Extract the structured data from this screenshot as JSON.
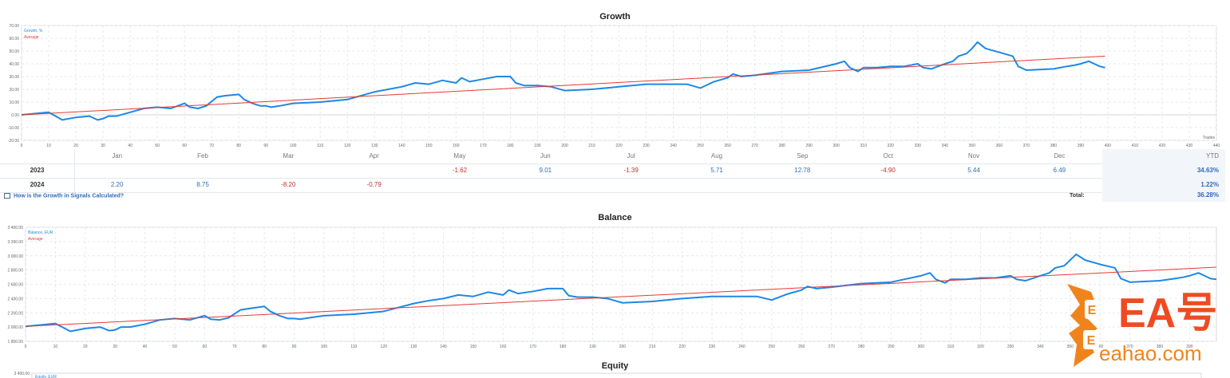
{
  "chart_data": [
    {
      "type": "line",
      "title": "Growth",
      "xlabel": "Trades",
      "xlim": [
        0,
        440
      ],
      "ylim": [
        -20,
        70
      ],
      "x_ticks": [
        "0",
        "10",
        "20",
        "30",
        "40",
        "50",
        "60",
        "70",
        "80",
        "90",
        "100",
        "110",
        "120",
        "130",
        "140",
        "150",
        "160",
        "170",
        "180",
        "190",
        "200",
        "210",
        "220",
        "230",
        "240",
        "250",
        "260",
        "270",
        "280",
        "290",
        "300",
        "310",
        "320",
        "330",
        "340",
        "350",
        "360",
        "370",
        "380",
        "390",
        "400",
        "410",
        "420",
        "430",
        "440"
      ],
      "y_ticks": [
        "-20.00",
        "-10.00",
        "0.00",
        "10.00",
        "20.00",
        "30.00",
        "40.00",
        "50.00",
        "60.00",
        "70.00"
      ],
      "legend": [
        "Growth, %",
        "Average"
      ],
      "series": [
        {
          "name": "Growth, %",
          "color": "#1e88e5",
          "x": [
            0,
            5,
            10,
            15,
            20,
            25,
            28,
            30,
            32,
            35,
            40,
            45,
            50,
            55,
            60,
            62,
            65,
            68,
            72,
            75,
            80,
            82,
            85,
            88,
            90,
            92,
            95,
            100,
            110,
            120,
            130,
            135,
            140,
            145,
            150,
            155,
            160,
            162,
            165,
            170,
            175,
            180,
            182,
            185,
            190,
            195,
            200,
            210,
            220,
            230,
            240,
            245,
            250,
            255,
            260,
            262,
            265,
            270,
            280,
            290,
            300,
            303,
            305,
            308,
            310,
            315,
            320,
            325,
            330,
            332,
            335,
            340,
            343,
            345,
            348,
            350,
            352,
            355,
            360,
            365,
            367,
            370,
            380,
            385,
            388,
            390,
            393,
            395,
            397,
            399
          ],
          "y": [
            0,
            1,
            2,
            -4,
            -2,
            -1,
            -4,
            -3,
            -1,
            -1,
            2,
            5,
            6,
            5,
            9,
            6,
            5,
            7,
            14,
            15,
            16,
            12,
            9,
            7,
            7,
            6,
            7,
            9,
            10,
            12,
            18,
            20,
            22,
            25,
            24,
            27,
            25,
            29,
            26,
            28,
            30,
            30,
            25,
            23,
            23,
            22,
            19,
            20,
            22,
            24,
            24,
            24,
            21,
            26,
            29,
            32,
            30,
            31,
            34,
            35,
            40,
            42,
            37,
            34,
            37,
            37,
            38,
            38,
            40,
            37,
            36,
            40,
            42,
            46,
            48,
            52,
            57,
            52,
            49,
            46,
            38,
            35,
            36,
            38,
            39,
            40,
            42,
            40,
            38,
            37
          ]
        },
        {
          "name": "Average",
          "color": "#e53935",
          "x": [
            0,
            399
          ],
          "y": [
            0,
            46
          ]
        }
      ]
    },
    {
      "type": "line",
      "title": "Balance",
      "xlim": [
        0,
        399
      ],
      "ylim": [
        1800,
        3400
      ],
      "x_ticks": [
        "0",
        "10",
        "20",
        "30",
        "40",
        "50",
        "60",
        "70",
        "80",
        "90",
        "100",
        "110",
        "120",
        "130",
        "140",
        "150",
        "160",
        "170",
        "180",
        "190",
        "200",
        "210",
        "220",
        "230",
        "240",
        "250",
        "260",
        "270",
        "280",
        "290",
        "300",
        "310",
        "320",
        "330",
        "340",
        "350",
        "360",
        "370",
        "380",
        "390"
      ],
      "y_ticks": [
        "1 800.00",
        "2 000.00",
        "2 200.00",
        "2 400.00",
        "2 600.00",
        "2 800.00",
        "3 000.00",
        "3 200.00",
        "3 400.00"
      ],
      "legend": [
        "Balance, EUR",
        "Average"
      ],
      "series": [
        {
          "name": "Balance, EUR",
          "color": "#1e88e5",
          "x": [
            0,
            5,
            10,
            15,
            20,
            25,
            28,
            30,
            32,
            35,
            40,
            45,
            50,
            55,
            60,
            62,
            65,
            68,
            72,
            75,
            80,
            82,
            85,
            88,
            90,
            92,
            95,
            100,
            110,
            120,
            130,
            135,
            140,
            145,
            150,
            155,
            160,
            162,
            165,
            170,
            175,
            180,
            182,
            185,
            190,
            195,
            200,
            210,
            220,
            230,
            240,
            245,
            250,
            255,
            260,
            262,
            265,
            270,
            280,
            290,
            300,
            303,
            305,
            308,
            310,
            315,
            320,
            325,
            330,
            332,
            335,
            340,
            343,
            345,
            348,
            350,
            352,
            355,
            360,
            365,
            367,
            370,
            380,
            385,
            388,
            390,
            393,
            395,
            397,
            399
          ],
          "y": [
            2010,
            2030,
            2050,
            1940,
            1980,
            2000,
            1950,
            1960,
            2000,
            2000,
            2040,
            2100,
            2120,
            2100,
            2160,
            2110,
            2100,
            2130,
            2240,
            2260,
            2290,
            2220,
            2160,
            2120,
            2120,
            2110,
            2130,
            2160,
            2180,
            2220,
            2330,
            2370,
            2400,
            2450,
            2430,
            2490,
            2450,
            2520,
            2470,
            2500,
            2540,
            2540,
            2440,
            2420,
            2420,
            2400,
            2340,
            2360,
            2400,
            2430,
            2430,
            2430,
            2380,
            2460,
            2520,
            2570,
            2540,
            2560,
            2610,
            2630,
            2720,
            2760,
            2670,
            2620,
            2670,
            2670,
            2690,
            2690,
            2720,
            2670,
            2650,
            2720,
            2760,
            2830,
            2860,
            2940,
            3020,
            2940,
            2880,
            2830,
            2680,
            2630,
            2650,
            2680,
            2700,
            2720,
            2760,
            2720,
            2680,
            2670
          ]
        },
        {
          "name": "Average",
          "color": "#e53935",
          "x": [
            0,
            399
          ],
          "y": [
            2010,
            2840
          ]
        }
      ]
    },
    {
      "type": "line",
      "title": "Equity",
      "y_ticks": [
        "3 400.00"
      ],
      "legend": [
        "Equity, EUR"
      ],
      "series": []
    }
  ],
  "yearly": {
    "months": [
      "Jan",
      "Feb",
      "Mar",
      "Apr",
      "May",
      "Jun",
      "Jul",
      "Aug",
      "Sep",
      "Oct",
      "Nov",
      "Dec"
    ],
    "ytd_label": "YTD",
    "rows": [
      {
        "year": "2023",
        "values": [
          "",
          "",
          "",
          "",
          "-1.62",
          "9.01",
          "-1.39",
          "5.71",
          "12.78",
          "-4.90",
          "5.44",
          "6.49"
        ],
        "ytd": "34.63%"
      },
      {
        "year": "2024",
        "values": [
          "2.20",
          "8.75",
          "-8.20",
          "-0.79",
          "",
          "",
          "",
          "",
          "",
          "",
          "",
          ""
        ],
        "ytd": "1.22%"
      }
    ],
    "help_link": "How is the Growth in Signals Calculated?",
    "total_label": "Total:",
    "total_value": "36.28%"
  },
  "watermark": {
    "text": "EA号",
    "url_text": "eahao.com"
  }
}
